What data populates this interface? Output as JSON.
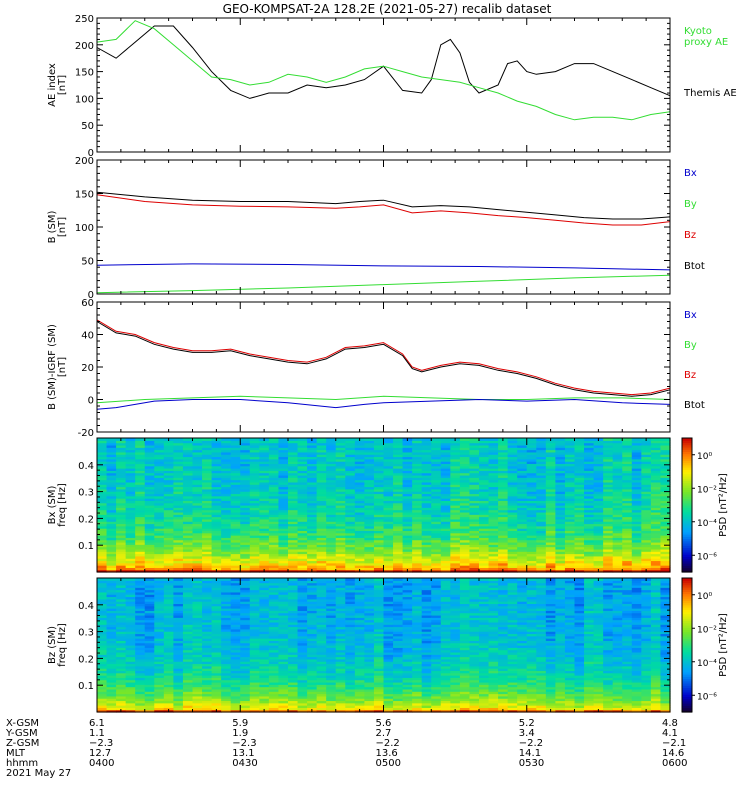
{
  "title": "GEO-KOMPSAT-2A 128.2E (2021-05-27) recalib dataset",
  "colors": {
    "black": "#000000",
    "green": "#33dd33",
    "red": "#dd0000",
    "blue": "#0000cc"
  },
  "chart_data": [
    {
      "type": "line",
      "ylabel": [
        "AE index",
        "[nT]"
      ],
      "ylim": [
        0,
        250
      ],
      "yticks": [
        0,
        50,
        100,
        150,
        200,
        250
      ],
      "xlim": [
        0,
        120
      ],
      "grid": false,
      "series": [
        {
          "name": "Themis AE",
          "color": "#000000",
          "x": [
            0,
            4,
            8,
            12,
            16,
            20,
            24,
            28,
            32,
            36,
            40,
            44,
            48,
            52,
            56,
            60,
            64,
            68,
            70,
            72,
            74,
            76,
            78,
            80,
            84,
            86,
            88,
            90,
            92,
            96,
            100,
            104,
            108,
            112,
            116,
            120
          ],
          "y": [
            195,
            175,
            205,
            235,
            235,
            195,
            150,
            115,
            100,
            110,
            110,
            125,
            120,
            125,
            135,
            160,
            115,
            110,
            135,
            200,
            210,
            185,
            130,
            110,
            125,
            165,
            170,
            150,
            145,
            150,
            165,
            165,
            150,
            135,
            120,
            105
          ]
        },
        {
          "name": "Kyoto proxy AE",
          "color": "#33dd33",
          "x": [
            0,
            4,
            8,
            12,
            16,
            20,
            24,
            28,
            32,
            36,
            40,
            44,
            48,
            52,
            56,
            60,
            64,
            68,
            72,
            76,
            80,
            84,
            88,
            92,
            96,
            100,
            104,
            108,
            112,
            116,
            120
          ],
          "y": [
            205,
            210,
            245,
            230,
            200,
            170,
            140,
            135,
            125,
            130,
            145,
            140,
            130,
            140,
            155,
            160,
            150,
            140,
            135,
            130,
            120,
            110,
            95,
            85,
            70,
            60,
            65,
            65,
            60,
            70,
            75
          ]
        }
      ],
      "legend": [
        {
          "text": [
            "Kyoto",
            "proxy AE"
          ],
          "color": "#33dd33"
        },
        {
          "text": [
            "Themis AE"
          ],
          "color": "#000000"
        }
      ]
    },
    {
      "type": "line",
      "ylabel": [
        "B (SM)",
        "[nT]"
      ],
      "ylim": [
        0,
        200
      ],
      "yticks": [
        0,
        50,
        100,
        150,
        200
      ],
      "xlim": [
        0,
        120
      ],
      "grid": false,
      "series": [
        {
          "name": "Btot",
          "color": "#000000",
          "x": [
            0,
            10,
            20,
            30,
            40,
            50,
            55,
            60,
            66,
            72,
            78,
            84,
            90,
            96,
            102,
            108,
            114,
            120
          ],
          "y": [
            152,
            145,
            140,
            138,
            138,
            135,
            138,
            140,
            130,
            132,
            130,
            126,
            122,
            118,
            114,
            112,
            112,
            115
          ]
        },
        {
          "name": "Bz",
          "color": "#dd0000",
          "x": [
            0,
            10,
            20,
            30,
            40,
            50,
            55,
            60,
            66,
            72,
            78,
            84,
            90,
            96,
            102,
            108,
            114,
            120
          ],
          "y": [
            148,
            138,
            133,
            131,
            130,
            128,
            130,
            133,
            121,
            124,
            121,
            117,
            114,
            110,
            106,
            103,
            103,
            108
          ]
        },
        {
          "name": "Bx",
          "color": "#0000cc",
          "x": [
            0,
            20,
            40,
            60,
            80,
            100,
            120
          ],
          "y": [
            43,
            45,
            44,
            42,
            41,
            39,
            36
          ]
        },
        {
          "name": "By",
          "color": "#33dd33",
          "x": [
            0,
            20,
            40,
            60,
            80,
            100,
            120
          ],
          "y": [
            2,
            5,
            9,
            14,
            19,
            24,
            28
          ]
        }
      ],
      "legend": [
        {
          "text": [
            "Bx"
          ],
          "color": "#0000cc"
        },
        {
          "text": [
            "By"
          ],
          "color": "#33dd33"
        },
        {
          "text": [
            "Bz"
          ],
          "color": "#dd0000"
        },
        {
          "text": [
            "Btot"
          ],
          "color": "#000000"
        }
      ]
    },
    {
      "type": "line",
      "ylabel": [
        "B (SM)-IGRF (SM)",
        "[nT]"
      ],
      "ylim": [
        -20,
        60
      ],
      "yticks": [
        -20,
        0,
        20,
        40,
        60
      ],
      "xlim": [
        0,
        120
      ],
      "grid": false,
      "series": [
        {
          "name": "Bz",
          "color": "#dd0000",
          "x": [
            0,
            4,
            8,
            12,
            16,
            20,
            24,
            28,
            32,
            36,
            40,
            44,
            48,
            52,
            56,
            60,
            64,
            66,
            68,
            72,
            76,
            80,
            84,
            88,
            92,
            96,
            100,
            104,
            108,
            112,
            116,
            120
          ],
          "y": [
            49,
            42,
            40,
            35,
            32,
            30,
            30,
            31,
            28,
            26,
            24,
            23,
            26,
            32,
            33,
            35,
            28,
            20,
            18,
            21,
            23,
            22,
            19,
            17,
            14,
            10,
            7,
            5,
            4,
            3,
            4,
            7
          ]
        },
        {
          "name": "Btot",
          "color": "#000000",
          "x": [
            0,
            4,
            8,
            12,
            16,
            20,
            24,
            28,
            32,
            36,
            40,
            44,
            48,
            52,
            56,
            60,
            64,
            66,
            68,
            72,
            76,
            80,
            84,
            88,
            92,
            96,
            100,
            104,
            108,
            112,
            116,
            120
          ],
          "y": [
            48,
            41,
            39,
            34,
            31,
            29,
            29,
            30,
            27,
            25,
            23,
            22,
            25,
            31,
            32,
            34,
            27,
            19,
            17,
            20,
            22,
            21,
            18,
            16,
            13,
            9,
            6,
            4,
            3,
            2,
            3,
            6
          ]
        },
        {
          "name": "By",
          "color": "#33dd33",
          "x": [
            0,
            10,
            20,
            30,
            40,
            50,
            60,
            70,
            80,
            90,
            100,
            110,
            120
          ],
          "y": [
            -2,
            0,
            1,
            2,
            1,
            0,
            2,
            1,
            0,
            0,
            1,
            1,
            0
          ]
        },
        {
          "name": "Bx",
          "color": "#0000cc",
          "x": [
            0,
            4,
            8,
            12,
            20,
            30,
            40,
            50,
            56,
            60,
            70,
            80,
            90,
            100,
            110,
            120
          ],
          "y": [
            -6,
            -5,
            -3,
            -1,
            0,
            0,
            -2,
            -5,
            -3,
            -2,
            -1,
            0,
            -1,
            0,
            -2,
            -3
          ]
        }
      ],
      "legend": [
        {
          "text": [
            "Bx"
          ],
          "color": "#0000cc"
        },
        {
          "text": [
            "By"
          ],
          "color": "#33dd33"
        },
        {
          "text": [
            "Bz"
          ],
          "color": "#dd0000"
        },
        {
          "text": [
            "Btot"
          ],
          "color": "#000000"
        }
      ]
    },
    {
      "type": "heatmap",
      "ylabel": [
        "Bx (SM)",
        "freq [Hz]"
      ],
      "ylim": [
        0,
        0.5
      ],
      "yticks": [
        0.1,
        0.2,
        0.3,
        0.4
      ],
      "xlim": [
        0,
        120
      ],
      "colorbar": {
        "label": "PSD [nT²/Hz]",
        "ticks": [
          "10⁰",
          "10⁻²",
          "10⁻⁴",
          "10⁻⁶"
        ],
        "log_range": [
          -7,
          1
        ]
      },
      "psd_profile": {
        "low_freq_log": 0.3,
        "high_freq_log": -3.9,
        "decay": 0.1,
        "noise": 1.2
      }
    },
    {
      "type": "heatmap",
      "ylabel": [
        "Bz (SM)",
        "freq [Hz]"
      ],
      "ylim": [
        0,
        0.5
      ],
      "yticks": [
        0.1,
        0.2,
        0.3,
        0.4
      ],
      "xlim": [
        0,
        120
      ],
      "colorbar": {
        "label": "PSD [nT²/Hz]",
        "ticks": [
          "10⁰",
          "10⁻²",
          "10⁻⁴",
          "10⁻⁶"
        ],
        "log_range": [
          -7,
          1
        ]
      },
      "psd_profile": {
        "low_freq_log": -0.6,
        "high_freq_log": -4.3,
        "decay": 0.09,
        "noise": 1.0
      }
    }
  ],
  "ephemeris": {
    "labels": [
      "X-GSM",
      "Y-GSM",
      "Z-GSM",
      "MLT",
      "hhmm"
    ],
    "date": "2021 May 27",
    "columns": [
      {
        "x": 0,
        "values": [
          "6.1",
          "1.1",
          "−2.3",
          "12.7",
          "0400"
        ]
      },
      {
        "x": 30,
        "values": [
          "5.9",
          "1.9",
          "−2.3",
          "13.1",
          "0430"
        ]
      },
      {
        "x": 60,
        "values": [
          "5.6",
          "2.7",
          "−2.2",
          "13.6",
          "0500"
        ]
      },
      {
        "x": 90,
        "values": [
          "5.2",
          "3.4",
          "−2.2",
          "14.1",
          "0530"
        ]
      },
      {
        "x": 120,
        "values": [
          "4.8",
          "4.1",
          "−2.1",
          "14.6",
          "0600"
        ]
      }
    ]
  }
}
